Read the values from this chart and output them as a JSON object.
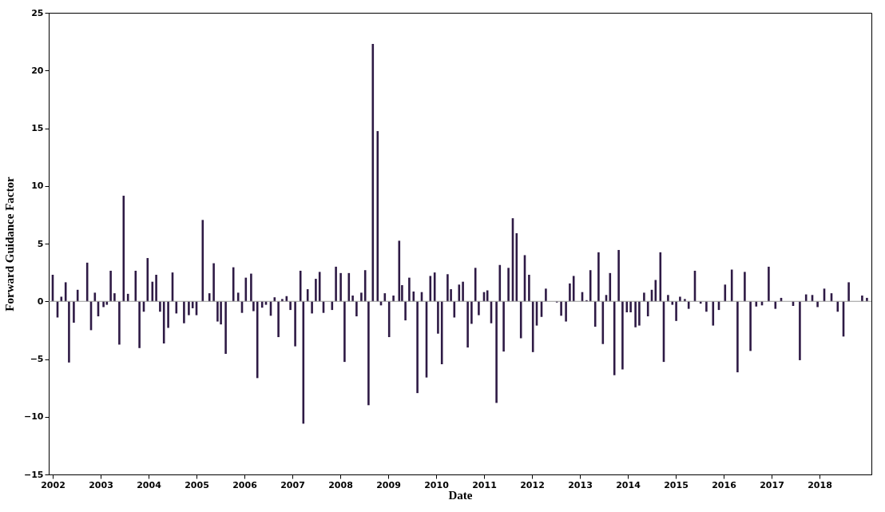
{
  "chart_data": {
    "type": "bar",
    "xlabel": "Date",
    "ylabel": "Forward Guidance Factor",
    "x": [
      2002.0,
      2002.1,
      2002.18,
      2002.27,
      2002.34,
      2002.44,
      2002.52,
      2002.72,
      2002.8,
      2002.88,
      2002.95,
      2003.06,
      2003.13,
      2003.21,
      2003.29,
      2003.39,
      2003.48,
      2003.57,
      2003.73,
      2003.81,
      2003.9,
      2003.98,
      2004.08,
      2004.16,
      2004.24,
      2004.32,
      2004.41,
      2004.5,
      2004.58,
      2004.74,
      2004.84,
      2004.92,
      2005.0,
      2005.13,
      2005.2,
      2005.27,
      2005.36,
      2005.44,
      2005.51,
      2005.61,
      2005.77,
      2005.87,
      2005.95,
      2006.03,
      2006.14,
      2006.19,
      2006.27,
      2006.37,
      2006.45,
      2006.55,
      2006.63,
      2006.71,
      2006.79,
      2006.88,
      2006.96,
      2007.06,
      2007.17,
      2007.23,
      2007.32,
      2007.41,
      2007.49,
      2007.57,
      2007.65,
      2007.83,
      2007.91,
      2008.01,
      2008.09,
      2008.18,
      2008.26,
      2008.34,
      2008.44,
      2008.52,
      2008.59,
      2008.68,
      2008.78,
      2008.85,
      2008.93,
      2009.02,
      2009.11,
      2009.23,
      2009.29,
      2009.36,
      2009.44,
      2009.53,
      2009.61,
      2009.7,
      2009.8,
      2009.88,
      2009.97,
      2010.04,
      2010.12,
      2010.24,
      2010.31,
      2010.38,
      2010.48,
      2010.56,
      2010.66,
      2010.74,
      2010.82,
      2010.89,
      2011.0,
      2011.07,
      2011.15,
      2011.26,
      2011.33,
      2011.41,
      2011.51,
      2011.6,
      2011.68,
      2011.77,
      2011.85,
      2011.94,
      2012.02,
      2012.1,
      2012.2,
      2012.29,
      2012.52,
      2012.61,
      2012.71,
      2012.79,
      2012.87,
      2012.97,
      2013.05,
      2013.14,
      2013.22,
      2013.32,
      2013.39,
      2013.48,
      2013.55,
      2013.63,
      2013.72,
      2013.81,
      2013.89,
      2013.98,
      2014.06,
      2014.16,
      2014.24,
      2014.34,
      2014.42,
      2014.5,
      2014.58,
      2014.68,
      2014.75,
      2014.84,
      2014.93,
      2015.01,
      2015.09,
      2015.19,
      2015.27,
      2015.4,
      2015.52,
      2015.64,
      2015.78,
      2015.9,
      2016.03,
      2016.17,
      2016.29,
      2016.44,
      2016.56,
      2016.68,
      2016.8,
      2016.94,
      2017.08,
      2017.2,
      2017.34,
      2017.45,
      2017.59,
      2017.72,
      2017.85,
      2017.96,
      2018.1,
      2018.25,
      2018.38,
      2018.5,
      2018.61,
      2018.75,
      2018.89,
      2018.99
    ],
    "series": [
      {
        "color": "#2e1a45",
        "values": [
          2.3,
          -1.4,
          0.4,
          1.65,
          -5.3,
          -1.85,
          1.0,
          3.35,
          -2.5,
          0.75,
          -1.3,
          -0.5,
          -0.3,
          2.65,
          0.7,
          -3.75,
          9.15,
          0.65,
          2.65,
          -4.05,
          -0.9,
          3.75,
          1.7,
          2.3,
          -0.9,
          -3.65,
          -2.3,
          2.5,
          -1.05,
          -1.9,
          -1.2,
          -0.6,
          -1.2,
          7.05,
          null,
          0.7,
          3.3,
          -1.75,
          -2.0,
          -4.55,
          2.95,
          0.75,
          -1.0,
          2.05,
          2.4,
          -0.85,
          -6.65,
          -0.55,
          -0.3,
          -1.25,
          0.35,
          -3.1,
          0.2,
          0.45,
          -0.75,
          -3.9,
          2.65,
          -10.6,
          1.05,
          -1.05,
          1.95,
          2.55,
          -1.0,
          -0.75,
          3.0,
          2.45,
          -5.25,
          2.45,
          0.5,
          -1.3,
          0.75,
          2.7,
          -9.0,
          22.3,
          14.75,
          -0.35,
          0.7,
          -3.1,
          0.5,
          5.25,
          1.4,
          -1.65,
          2.05,
          0.85,
          -7.95,
          0.8,
          -6.6,
          2.2,
          2.5,
          -2.8,
          -5.45,
          2.35,
          1.05,
          -1.4,
          1.45,
          1.7,
          -4.0,
          -1.95,
          2.9,
          -1.2,
          0.8,
          0.95,
          -1.9,
          -8.8,
          3.15,
          -4.35,
          2.9,
          7.2,
          5.9,
          -3.2,
          4.0,
          2.3,
          -4.4,
          -2.1,
          -1.35,
          1.1,
          -0.1,
          -1.25,
          -1.75,
          1.55,
          2.2,
          null,
          0.8,
          0.1,
          2.7,
          -2.2,
          4.25,
          -3.7,
          0.55,
          2.45,
          -6.4,
          4.45,
          -5.9,
          -0.95,
          -0.95,
          -2.25,
          -2.1,
          0.75,
          -1.3,
          1.0,
          1.85,
          4.25,
          -5.25,
          0.55,
          -0.3,
          -1.7,
          0.4,
          0.2,
          -0.65,
          2.65,
          -0.2,
          -0.9,
          -2.1,
          -0.75,
          1.45,
          2.75,
          -6.15,
          2.55,
          -4.3,
          -0.45,
          -0.35,
          3.0,
          -0.65,
          0.3,
          null,
          -0.4,
          -5.1,
          0.6,
          0.55,
          -0.5,
          1.1,
          0.7,
          -0.9,
          -3.05,
          1.65,
          null,
          0.5,
          0.3
        ]
      }
    ],
    "xlim": [
      2002,
      2019
    ],
    "xticks": [
      2002,
      2003,
      2004,
      2005,
      2006,
      2007,
      2008,
      2009,
      2010,
      2011,
      2012,
      2013,
      2014,
      2015,
      2016,
      2017,
      2018
    ],
    "ylim": [
      -15,
      25
    ],
    "yticks": [
      -15,
      -10,
      -5,
      0,
      5,
      10,
      15,
      20,
      25
    ],
    "ref_lines": [
      {
        "axis": "y",
        "value": 0,
        "color": "#999999"
      }
    ],
    "grid": false,
    "legend": false
  }
}
